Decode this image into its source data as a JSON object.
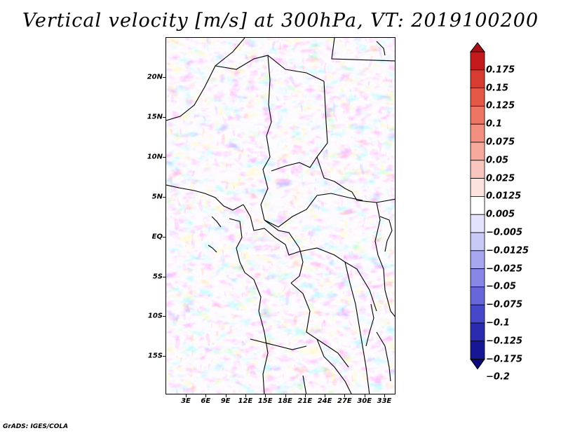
{
  "title": "Vertical velocity [m/s] at 300hPa, VT: 2019100200",
  "credit": "GrADS: IGES/COLA",
  "map": {
    "lat_labels": [
      "20N",
      "15N",
      "10N",
      "5N",
      "EQ",
      "5S",
      "10S",
      "15S"
    ],
    "lon_labels": [
      "3E",
      "6E",
      "9E",
      "12E",
      "15E",
      "18E",
      "21E",
      "24E",
      "27E",
      "30E",
      "33E"
    ]
  },
  "colorbar": {
    "labels": [
      "0.175",
      "0.15",
      "0.125",
      "0.1",
      "0.075",
      "0.05",
      "0.025",
      "0.0125",
      "0.005",
      "−0.005",
      "−0.0125",
      "−0.025",
      "−0.05",
      "−0.075",
      "−0.1",
      "−0.125",
      "−0.175",
      "−0.2"
    ],
    "colors": [
      "#a50f15",
      "#c41a1e",
      "#d63c32",
      "#e35847",
      "#ec7563",
      "#f28f80",
      "#f6a99c",
      "#f9c6bd",
      "#fce3de",
      "#ffffff",
      "#e3e3fb",
      "#c9c9f6",
      "#a7a7ef",
      "#8787e6",
      "#6767da",
      "#4747c9",
      "#2b2bb0",
      "#171796",
      "#08087a"
    ]
  }
}
